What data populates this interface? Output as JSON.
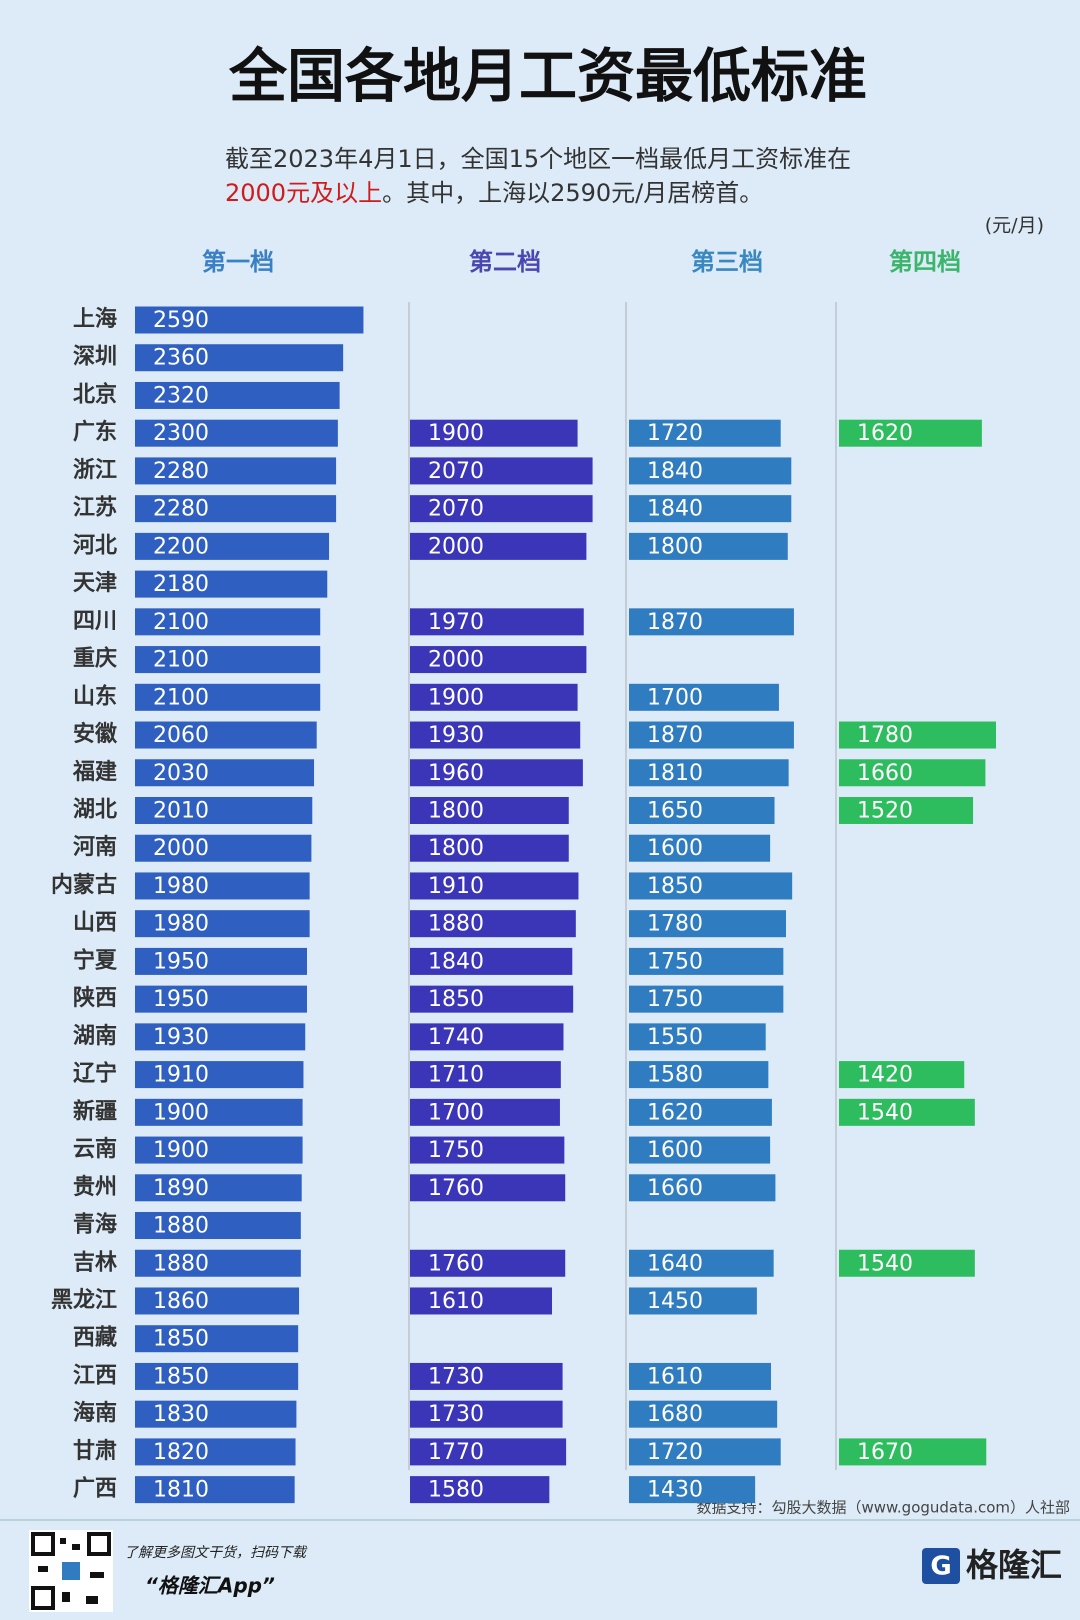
{
  "chart_data": {
    "type": "bar",
    "orientation": "horizontal",
    "title": "全国各地月工资最低标准",
    "subtitle": {
      "line1": "截至2023年4月1日，全国15个地区一档最低月工资标准在",
      "highlight": "2000元及以上",
      "rest": "。其中，上海以2590元/月居榜首。"
    },
    "unit_label": "(元/月)",
    "categories": [
      "上海",
      "深圳",
      "北京",
      "广东",
      "浙江",
      "江苏",
      "河北",
      "天津",
      "四川",
      "重庆",
      "山东",
      "安徽",
      "福建",
      "湖北",
      "河南",
      "内蒙古",
      "山西",
      "宁夏",
      "陕西",
      "湖南",
      "辽宁",
      "新疆",
      "云南",
      "贵州",
      "青海",
      "吉林",
      "黑龙江",
      "西藏",
      "江西",
      "海南",
      "甘肃",
      "广西"
    ],
    "series": [
      {
        "name": "第一档",
        "color": "#2f5fc0",
        "header_color": "#3a80c4",
        "values": [
          2590,
          2360,
          2320,
          2300,
          2280,
          2280,
          2200,
          2180,
          2100,
          2100,
          2100,
          2060,
          2030,
          2010,
          2000,
          1980,
          1980,
          1950,
          1950,
          1930,
          1910,
          1900,
          1900,
          1890,
          1880,
          1880,
          1860,
          1850,
          1850,
          1830,
          1820,
          1810
        ]
      },
      {
        "name": "第二档",
        "color": "#3b35b8",
        "header_color": "#4a47b0",
        "values": [
          null,
          null,
          null,
          1900,
          2070,
          2070,
          2000,
          null,
          1970,
          2000,
          1900,
          1930,
          1960,
          1800,
          1800,
          1910,
          1880,
          1840,
          1850,
          1740,
          1710,
          1700,
          1750,
          1760,
          null,
          1760,
          1610,
          null,
          1730,
          1730,
          1770,
          1580
        ]
      },
      {
        "name": "第三档",
        "color": "#2f7cc0",
        "header_color": "#3a88c0",
        "values": [
          null,
          null,
          null,
          1720,
          1840,
          1840,
          1800,
          null,
          1870,
          null,
          1700,
          1870,
          1810,
          1650,
          1600,
          1850,
          1780,
          1750,
          1750,
          1550,
          1580,
          1620,
          1600,
          1660,
          null,
          1640,
          1450,
          null,
          1610,
          1680,
          1720,
          1430
        ]
      },
      {
        "name": "第四档",
        "color": "#2ebd5e",
        "header_color": "#3bb56b",
        "values": [
          null,
          null,
          null,
          1620,
          null,
          null,
          null,
          null,
          null,
          null,
          null,
          1780,
          1660,
          1520,
          null,
          null,
          null,
          null,
          null,
          null,
          1420,
          1540,
          null,
          null,
          null,
          1540,
          null,
          null,
          null,
          null,
          1670,
          null
        ]
      }
    ],
    "source": "数据支持：勾股大数据（www.gogudata.com）人社部"
  },
  "footer": {
    "promo": "了解更多图文干货，扫码下载",
    "app": "“格隆汇App”",
    "logo": "格隆汇"
  }
}
